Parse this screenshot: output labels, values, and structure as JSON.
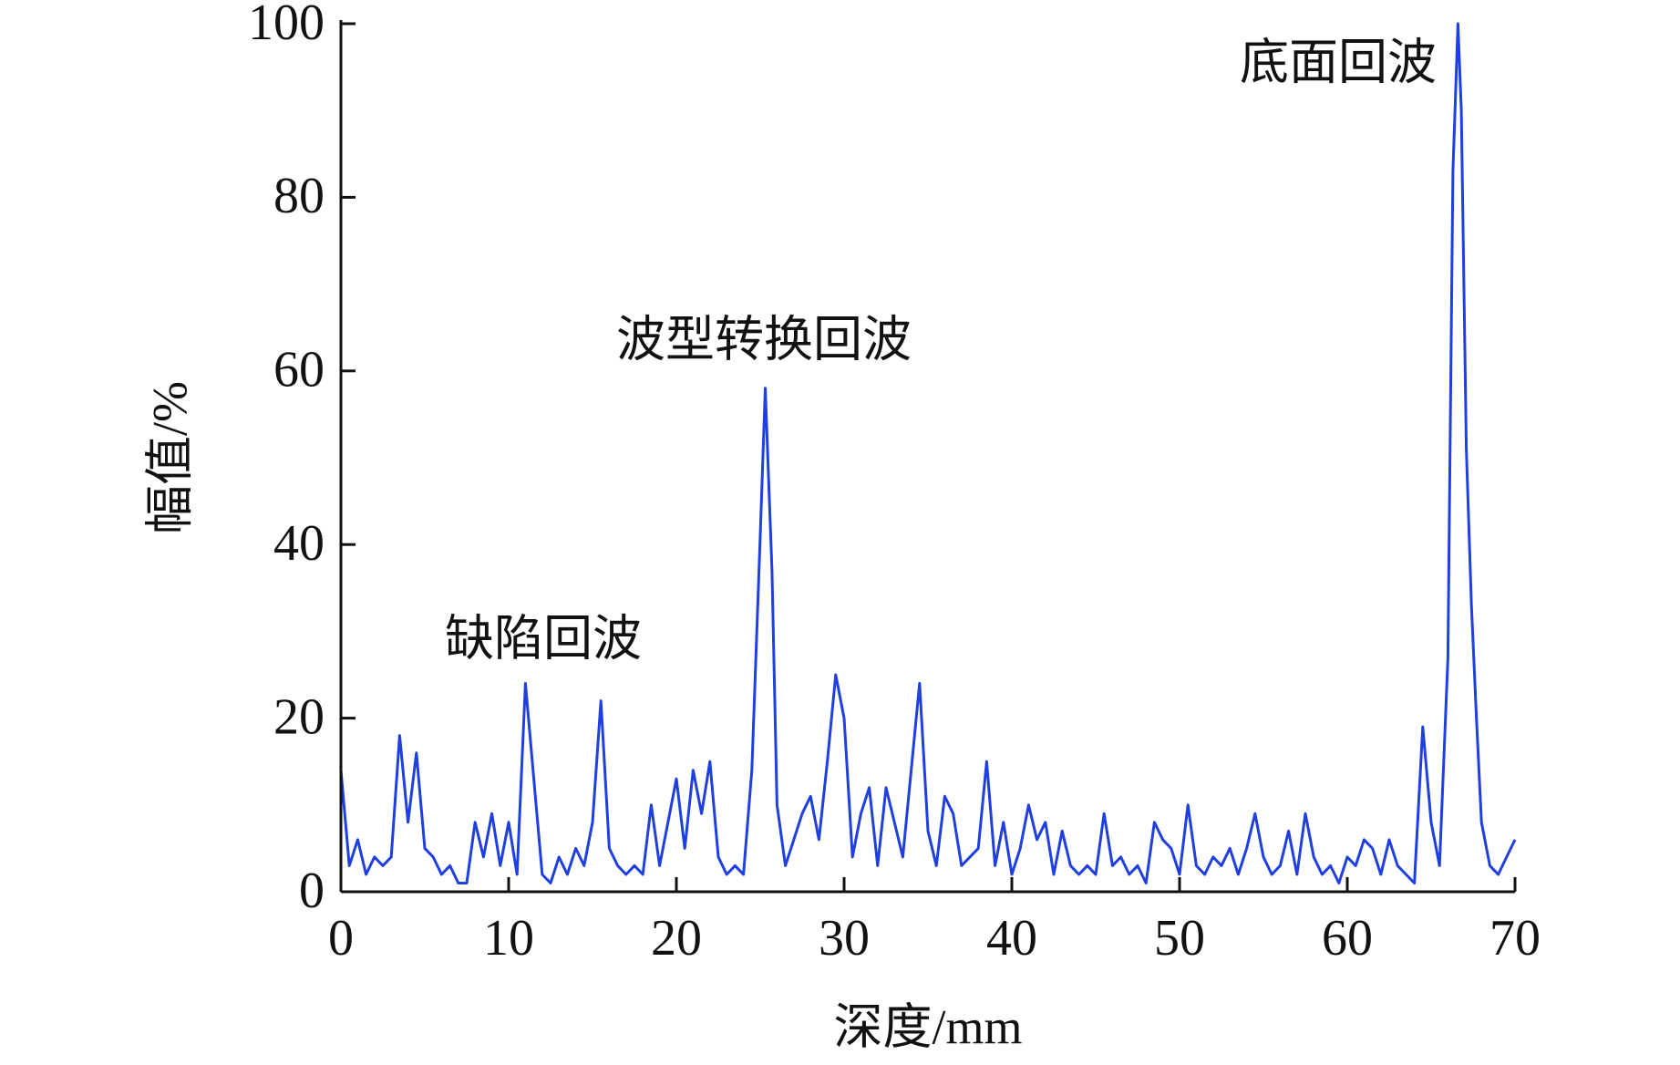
{
  "chart_data": {
    "type": "line",
    "x_label": "深度/mm",
    "y_label": "幅值/%",
    "annotations": [
      "缺陷回波",
      "波型转换回波",
      "底面回波"
    ],
    "xlim": [
      0,
      70
    ],
    "xticks": [
      0,
      10,
      20,
      30,
      40,
      50,
      60,
      70
    ],
    "ylim": [
      0,
      100
    ],
    "yticks": [
      0,
      20,
      40,
      60,
      80,
      100
    ],
    "series": [
      {
        "name": "幅值",
        "color": "#1f3fe0",
        "x": [
          0,
          0.5,
          1,
          1.5,
          2,
          2.5,
          3,
          3.5,
          4,
          4.5,
          5,
          5.5,
          6,
          6.5,
          7,
          7.5,
          8,
          8.5,
          9,
          9.5,
          10,
          10.5,
          11,
          11.5,
          12,
          12.5,
          13,
          13.5,
          14,
          14.5,
          15,
          15.5,
          16,
          16.5,
          17,
          17.5,
          18,
          18.5,
          19,
          19.5,
          20,
          20.5,
          21,
          21.5,
          22,
          22.5,
          23,
          23.5,
          24,
          24.5,
          25,
          25.3,
          25.7,
          26,
          26.5,
          27,
          27.5,
          28,
          28.5,
          29,
          29.5,
          30,
          30.5,
          31,
          31.5,
          32,
          32.5,
          33,
          33.5,
          34,
          34.5,
          35,
          35.5,
          36,
          36.5,
          37,
          37.5,
          38,
          38.5,
          39,
          39.5,
          40,
          40.5,
          41,
          41.5,
          42,
          42.5,
          43,
          43.5,
          44,
          44.5,
          45,
          45.5,
          46,
          46.5,
          47,
          47.5,
          48,
          48.5,
          49,
          49.5,
          50,
          50.5,
          51,
          51.5,
          52,
          52.5,
          53,
          53.5,
          54,
          54.5,
          55,
          55.5,
          56,
          56.5,
          57,
          57.5,
          58,
          58.5,
          59,
          59.5,
          60,
          60.5,
          61,
          61.5,
          62,
          62.5,
          63,
          63.5,
          64,
          64.5,
          65,
          65.5,
          66,
          66.3,
          66.6,
          66.8,
          67.1,
          67.4,
          67.7,
          68,
          68.5,
          69,
          69.5,
          70
        ],
        "values": [
          14,
          3,
          6,
          2,
          4,
          3,
          4,
          18,
          8,
          16,
          5,
          4,
          2,
          3,
          1,
          1,
          8,
          4,
          9,
          3,
          8,
          2,
          24,
          13,
          2,
          1,
          4,
          2,
          5,
          3,
          8,
          22,
          5,
          3,
          2,
          3,
          2,
          10,
          3,
          8,
          13,
          5,
          14,
          9,
          15,
          4,
          2,
          3,
          2,
          14,
          41,
          58,
          37,
          10,
          3,
          6,
          9,
          11,
          6,
          15,
          25,
          20,
          4,
          9,
          12,
          3,
          12,
          8,
          4,
          14,
          24,
          7,
          3,
          11,
          9,
          3,
          4,
          5,
          15,
          3,
          8,
          2,
          5,
          10,
          6,
          8,
          2,
          7,
          3,
          2,
          3,
          2,
          9,
          3,
          4,
          2,
          3,
          1,
          8,
          6,
          5,
          2,
          10,
          3,
          2,
          4,
          3,
          5,
          2,
          5,
          9,
          4,
          2,
          3,
          7,
          2,
          9,
          4,
          2,
          3,
          1,
          4,
          3,
          6,
          5,
          2,
          6,
          3,
          2,
          1,
          19,
          8,
          3,
          27,
          83,
          100,
          90,
          51,
          33,
          20,
          8,
          3,
          2,
          4,
          6
        ]
      }
    ]
  }
}
